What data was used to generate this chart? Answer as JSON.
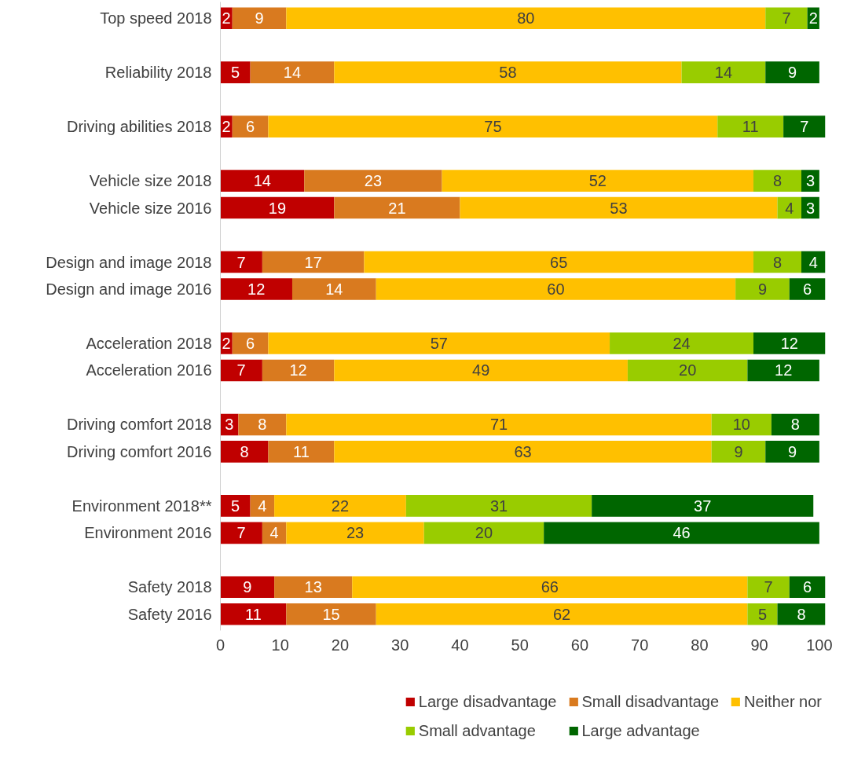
{
  "chart_data": {
    "type": "bar",
    "orientation": "horizontal",
    "stacked": true,
    "data_labels": true,
    "legend": "bottom",
    "grid": false,
    "categories": [
      "Top speed 2018",
      null,
      "Reliability 2018",
      null,
      "Driving abilities 2018",
      null,
      "Vehicle size 2018",
      "Vehicle size 2016",
      null,
      "Design and image 2018",
      "Design and image 2016",
      null,
      "Acceleration 2018",
      "Acceleration 2016",
      null,
      "Driving comfort 2018",
      "Driving comfort 2016",
      null,
      "Environment 2018**",
      "Environment 2016",
      null,
      "Safety 2018",
      "Safety 2016"
    ],
    "xlim": [
      0,
      101
    ],
    "xticks": [
      0,
      10,
      20,
      30,
      40,
      50,
      60,
      70,
      80,
      90,
      100
    ],
    "series": [
      {
        "name": "Large disadvantage",
        "color": "#c00000",
        "values": [
          2,
          null,
          5,
          null,
          2,
          null,
          14,
          19,
          null,
          7,
          12,
          null,
          2,
          7,
          null,
          3,
          8,
          null,
          5,
          7,
          null,
          9,
          11
        ]
      },
      {
        "name": "Small disadvantage",
        "color": "#d97a1f",
        "values": [
          9,
          null,
          14,
          null,
          6,
          null,
          23,
          21,
          null,
          17,
          14,
          null,
          6,
          12,
          null,
          8,
          11,
          null,
          4,
          4,
          null,
          13,
          15
        ]
      },
      {
        "name": "Neither nor",
        "color": "#ffc000",
        "values": [
          80,
          null,
          58,
          null,
          75,
          null,
          52,
          53,
          null,
          65,
          60,
          null,
          57,
          49,
          null,
          71,
          63,
          null,
          22,
          23,
          null,
          66,
          62
        ]
      },
      {
        "name": "Small advantage",
        "color": "#99cc00",
        "values": [
          7,
          null,
          14,
          null,
          11,
          null,
          8,
          4,
          null,
          8,
          9,
          null,
          24,
          20,
          null,
          10,
          9,
          null,
          31,
          20,
          null,
          7,
          5
        ]
      },
      {
        "name": "Large advantage",
        "color": "#006600",
        "values": [
          2,
          null,
          9,
          null,
          7,
          null,
          3,
          3,
          null,
          4,
          6,
          null,
          12,
          12,
          null,
          8,
          9,
          null,
          37,
          46,
          null,
          6,
          8
        ]
      }
    ]
  }
}
